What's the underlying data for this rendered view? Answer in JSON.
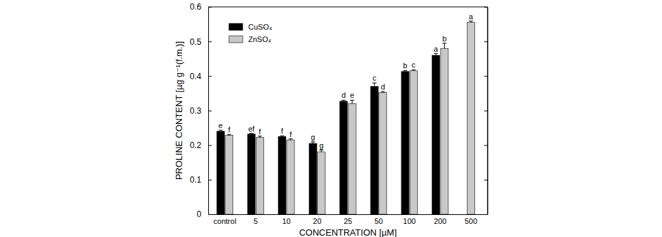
{
  "chart_data": {
    "type": "bar",
    "x_label": "CONCENTRATION  [µM]",
    "y_label": "PROLINE CONTENT [µg g⁻¹(f.m.)]",
    "categories": [
      "control",
      "5",
      "10",
      "20",
      "25",
      "50",
      "100",
      "200",
      "500"
    ],
    "series": [
      {
        "name": "CuSO₄",
        "color": "#000000",
        "values": [
          0.24,
          0.232,
          0.225,
          0.205,
          0.327,
          0.37,
          0.413,
          0.46,
          null
        ],
        "errors": [
          0.003,
          0.002,
          0.002,
          0.004,
          0.003,
          0.01,
          0.003,
          0.005,
          null
        ],
        "letters": [
          "e",
          "ef",
          "f",
          "g",
          "d",
          "c",
          "b",
          "a",
          null
        ]
      },
      {
        "name": "ZnSO₄",
        "color": "#c8c8c8",
        "values": [
          0.228,
          0.222,
          0.215,
          0.18,
          0.32,
          0.352,
          0.415,
          0.48,
          0.555
        ],
        "errors": [
          0.003,
          0.004,
          0.003,
          0.006,
          0.01,
          0.003,
          0.003,
          0.015,
          0.004
        ],
        "letters": [
          "f",
          "f",
          "f",
          "g",
          "e",
          "d",
          "c",
          "b",
          "a"
        ]
      }
    ],
    "ylim": [
      0,
      0.6
    ],
    "yticks": [
      0,
      0.1,
      0.2,
      0.3,
      0.4,
      0.5,
      0.6
    ],
    "legend": "top-left",
    "grid": false
  }
}
